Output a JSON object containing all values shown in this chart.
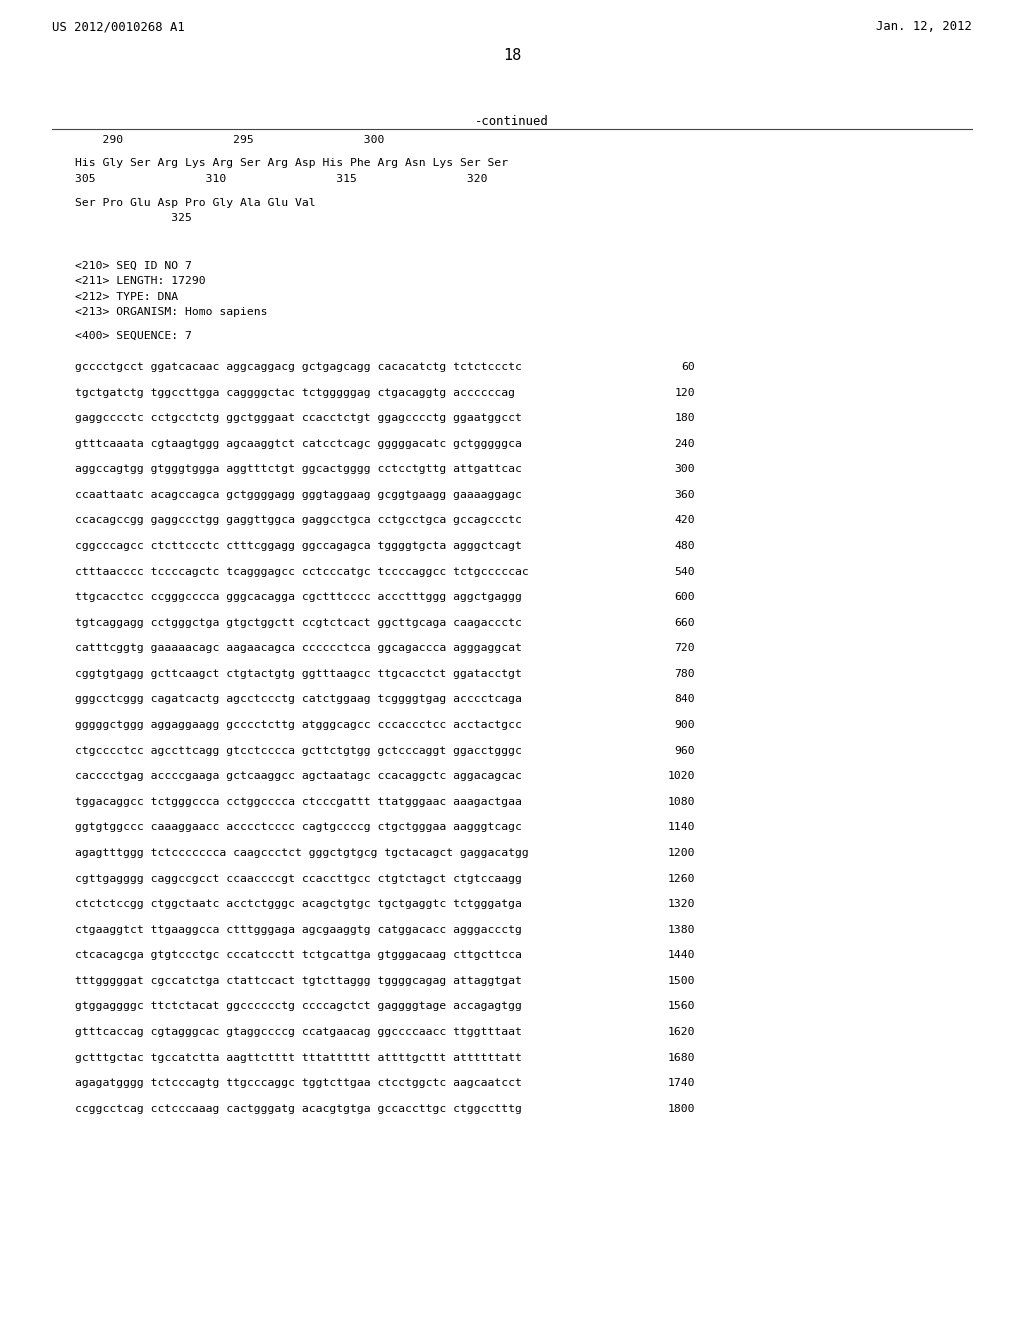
{
  "header_left": "US 2012/0010268 A1",
  "header_right": "Jan. 12, 2012",
  "page_number": "18",
  "continued_label": "-continued",
  "background_color": "#ffffff",
  "text_color": "#000000",
  "top_section": [
    {
      "type": "ruler",
      "text": "    290                295                300"
    },
    {
      "type": "blank_small"
    },
    {
      "type": "seq",
      "text": "His Gly Ser Arg Lys Arg Ser Arg Asp His Phe Arg Asn Lys Ser Ser"
    },
    {
      "type": "nums",
      "text": "305                310                315                320"
    },
    {
      "type": "blank_small"
    },
    {
      "type": "seq",
      "text": "Ser Pro Glu Asp Pro Gly Ala Glu Val"
    },
    {
      "type": "nums",
      "text": "              325"
    },
    {
      "type": "blank_large"
    },
    {
      "type": "blank_large"
    },
    {
      "type": "meta",
      "text": "<210> SEQ ID NO 7"
    },
    {
      "type": "meta",
      "text": "<211> LENGTH: 17290"
    },
    {
      "type": "meta",
      "text": "<212> TYPE: DNA"
    },
    {
      "type": "meta",
      "text": "<213> ORGANISM: Homo sapiens"
    },
    {
      "type": "blank_small"
    },
    {
      "type": "meta",
      "text": "<400> SEQUENCE: 7"
    },
    {
      "type": "blank_large"
    }
  ],
  "dna_lines": [
    {
      "text": "gcccctgcct ggatcacaac aggcaggacg gctgagcagg cacacatctg tctctccctc",
      "num": "60"
    },
    {
      "text": "tgctgatctg tggccttgga caggggctac tctgggggag ctgacaggtg accccccag",
      "num": "120"
    },
    {
      "text": "gaggcccctc cctgcctctg ggctgggaat ccacctctgt ggagcccctg ggaatggcct",
      "num": "180"
    },
    {
      "text": "gtttcaaata cgtaagtggg agcaaggtct catcctcagc gggggacatc gctgggggca",
      "num": "240"
    },
    {
      "text": "aggccagtgg gtgggtggga aggtttctgt ggcactgggg cctcctgttg attgattcac",
      "num": "300"
    },
    {
      "text": "ccaattaatc acagccagca gctggggagg gggtaggaag gcggtgaagg gaaaaggagc",
      "num": "360"
    },
    {
      "text": "ccacagccgg gaggccctgg gaggttggca gaggcctgca cctgcctgca gccagccctc",
      "num": "420"
    },
    {
      "text": "cggcccagcc ctcttccctc ctttcggagg ggccagagca tggggtgcta agggctcagt",
      "num": "480"
    },
    {
      "text": "ctttaacccc tccccagctc tcagggagcc cctcccatgc tccccaggcc tctgcccccac",
      "num": "540"
    },
    {
      "text": "ttgcacctcc ccgggcccca gggcacagga cgctttcccc accctttggg aggctgaggg",
      "num": "600"
    },
    {
      "text": "tgtcaggagg cctgggctga gtgctggctt ccgtctcact ggcttgcaga caagaccctc",
      "num": "660"
    },
    {
      "text": "catttcggtg gaaaaacagc aagaacagca cccccctcca ggcagaccca agggaggcat",
      "num": "720"
    },
    {
      "text": "cggtgtgagg gcttcaagct ctgtactgtg ggtttaagcc ttgcacctct ggatacctgt",
      "num": "780"
    },
    {
      "text": "gggcctcggg cagatcactg agcctccctg catctggaag tcggggtgag acccctcaga",
      "num": "840"
    },
    {
      "text": "gggggctggg aggaggaagg gcccctcttg atgggcagcc cccaccctcc acctactgcc",
      "num": "900"
    },
    {
      "text": "ctgcccctcc agccttcagg gtcctcccca gcttctgtgg gctcccaggt ggacctgggc",
      "num": "960"
    },
    {
      "text": "cacccctgag accccgaaga gctcaaggcc agctaatagc ccacaggctc aggacagcac",
      "num": "1020"
    },
    {
      "text": "tggacaggcc tctgggccca cctggcccca ctcccgattt ttatgggaac aaagactgaa",
      "num": "1080"
    },
    {
      "text": "ggtgtggccc caaaggaacc acccctcccc cagtgccccg ctgctgggaa aagggtcagc",
      "num": "1140"
    },
    {
      "text": "agagtttggg tctccccccca caagccctct gggctgtgcg tgctacagct gaggacatgg",
      "num": "1200"
    },
    {
      "text": "cgttgagggg caggccgcct ccaaccccgt ccaccttgcc ctgtctagct ctgtccaagg",
      "num": "1260"
    },
    {
      "text": "ctctctccgg ctggctaatc acctctgggc acagctgtgc tgctgaggtc tctgggatga",
      "num": "1320"
    },
    {
      "text": "ctgaaggtct ttgaaggcca ctttgggaga agcgaaggtg catggacacc agggaccctg",
      "num": "1380"
    },
    {
      "text": "ctcacagcga gtgtccctgc cccatccctt tctgcattga gtgggacaag cttgcttcca",
      "num": "1440"
    },
    {
      "text": "tttgggggat cgccatctga ctattccact tgtcttaggg tggggcagag attaggtgat",
      "num": "1500"
    },
    {
      "text": "gtggaggggc ttctctacat ggcccccctg ccccagctct gaggggtage accagagtgg",
      "num": "1560"
    },
    {
      "text": "gtttcaccag cgtagggcac gtaggccccg ccatgaacag ggccccaacc ttggtttaat",
      "num": "1620"
    },
    {
      "text": "gctttgctac tgccatctta aagttctttt tttatttttt attttgcttt attttttatt",
      "num": "1680"
    },
    {
      "text": "agagatgggg tctcccagtg ttgcccaggc tggtcttgaa ctcctggctc aagcaatcct",
      "num": "1740"
    },
    {
      "text": "ccggcctcag cctcccaaag cactgggatg acacgtgtga gccaccttgc ctggcctttg",
      "num": "1800"
    }
  ]
}
